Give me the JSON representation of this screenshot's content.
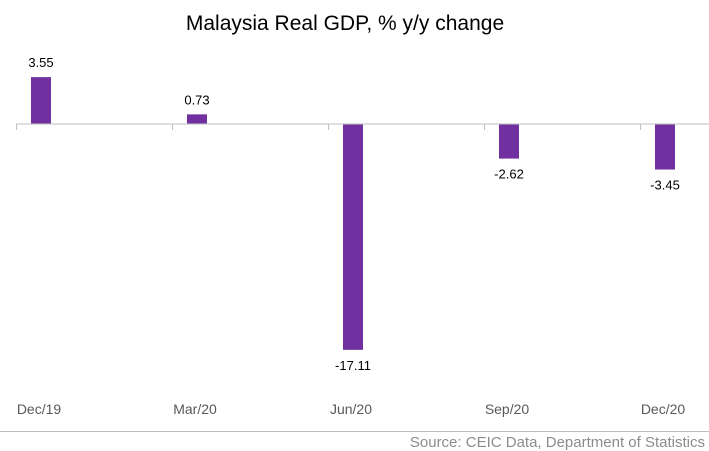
{
  "chart_data": {
    "type": "bar",
    "title": "Malaysia Real GDP, % y/y change",
    "categories": [
      "Dec/19",
      "Mar/20",
      "Jun/20",
      "Sep/20",
      "Dec/20"
    ],
    "values": [
      3.55,
      0.73,
      -17.11,
      -2.62,
      -3.45
    ],
    "data_labels": [
      "3.55",
      "0.73",
      "-17.11",
      "-2.62",
      "-3.45"
    ],
    "xlabel": "",
    "ylabel": "",
    "ylim": [
      -17.11,
      3.55
    ],
    "grid": false,
    "bar_color": "#7030a0",
    "source": "Source: CEIC Data, Department of Statistics"
  }
}
